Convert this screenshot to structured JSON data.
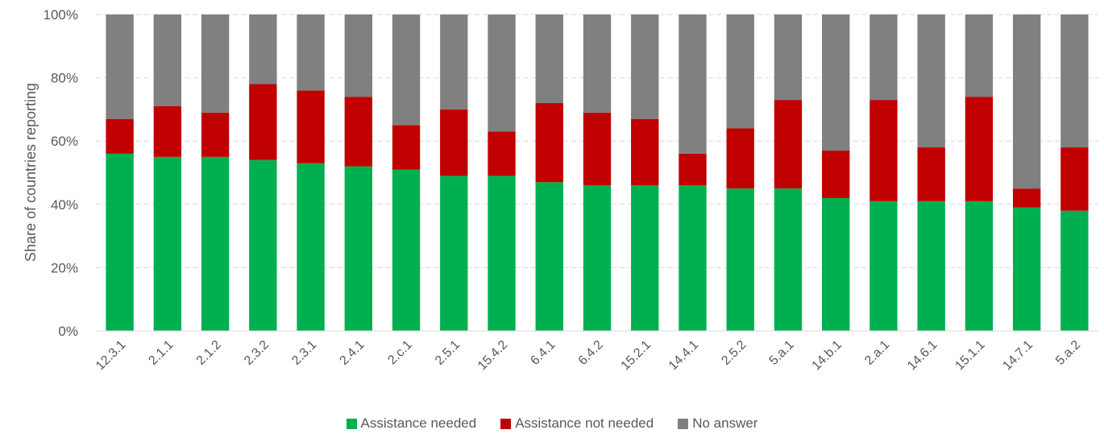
{
  "chart_data": {
    "type": "bar",
    "stacked": true,
    "ylabel": "Share of countries reporting",
    "ylim": [
      0,
      100
    ],
    "yticks": [
      "0%",
      "20%",
      "40%",
      "60%",
      "80%",
      "100%"
    ],
    "grid": true,
    "legend_position": "bottom",
    "categories": [
      "12.3.1",
      "2.1.1",
      "2.1.2",
      "2.3.2",
      "2.3.1",
      "2.4.1",
      "2.c.1",
      "2.5.1",
      "15.4.2",
      "6.4.1",
      "6.4.2",
      "15.2.1",
      "14.4.1",
      "2.5.2",
      "5.a.1",
      "14.b.1",
      "2.a.1",
      "14.6.1",
      "15.1.1",
      "14.7.1",
      "5.a.2"
    ],
    "series": [
      {
        "name": "Assistance needed",
        "color": "#00b050",
        "values": [
          56,
          55,
          55,
          54,
          53,
          52,
          51,
          49,
          49,
          47,
          46,
          46,
          46,
          45,
          45,
          42,
          41,
          41,
          41,
          39,
          38
        ]
      },
      {
        "name": "Assistance not needed",
        "color": "#c00000",
        "values": [
          11,
          16,
          14,
          24,
          23,
          22,
          14,
          21,
          14,
          25,
          23,
          21,
          10,
          19,
          28,
          15,
          32,
          17,
          33,
          6,
          20
        ]
      },
      {
        "name": "No answer",
        "color": "#808080",
        "values": [
          33,
          29,
          31,
          22,
          24,
          26,
          35,
          30,
          37,
          28,
          31,
          33,
          44,
          36,
          27,
          43,
          27,
          42,
          26,
          55,
          42
        ]
      }
    ]
  }
}
